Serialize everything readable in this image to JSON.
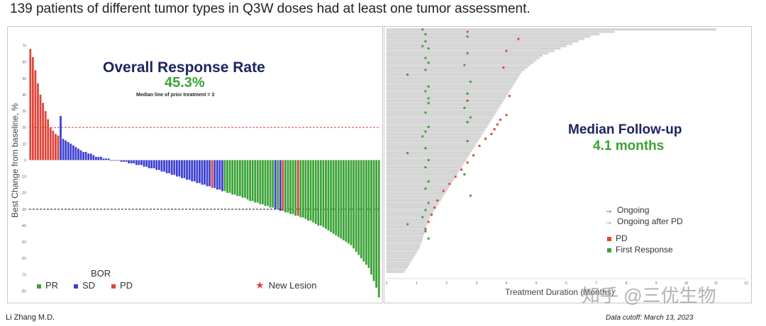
{
  "page": {
    "title": "139 patients of different tumor types in Q3W doses had at least one tumor assessment.",
    "author": "Li Zhang M.D.",
    "cutoff": "Data cutoff: March 13, 2023",
    "watermark": "知乎 @三优生物"
  },
  "colors": {
    "pr": "#3aa335",
    "sd": "#3b3fd1",
    "pd": "#e0443b",
    "title_navy": "#1c2560",
    "accent_green": "#3aa335"
  },
  "waterfall_text": {
    "orr_title": "Overall Response Rate",
    "orr_value": "45.3%",
    "prior_line": "Median line of prior treatment = 3",
    "ylabel": "Best Change from baseline, %",
    "bor_title": "BOR",
    "legend": {
      "pr": "PR",
      "sd": "SD",
      "pd": "PD",
      "new_lesion": "New Lesion"
    },
    "star_icon": "star-icon"
  },
  "swimmer_text": {
    "fu_title": "Median Follow-up",
    "fu_value": "4.1 months",
    "xlabel": "Treatment Duration (Months)",
    "legend": {
      "ongoing": "Ongoing",
      "ongoing_after_pd": "Ongoing after PD",
      "pd": "PD",
      "first_response": "First Response"
    },
    "arrow_icon": "arrow-right-icon"
  },
  "chart_data": [
    {
      "type": "bar",
      "title": "Overall Response Rate",
      "ylabel": "Best Change from baseline, %",
      "xlabel": "",
      "ylim": [
        -85,
        75
      ],
      "yticks": [
        70,
        60,
        50,
        40,
        30,
        20,
        10,
        0,
        -10,
        -20,
        -30,
        -40,
        -50,
        -60,
        -70,
        -80
      ],
      "reference_lines": [
        20,
        -30
      ],
      "grid": false,
      "legend": "bottom-left",
      "series_name": "Best overall response",
      "values": [
        68,
        63,
        55,
        47,
        40,
        35,
        30,
        25,
        20,
        18,
        16,
        15,
        27,
        13,
        12,
        11,
        10,
        9,
        8,
        7,
        6,
        5,
        5,
        4,
        4,
        3,
        2,
        2,
        2,
        1,
        1,
        1,
        0,
        0,
        0,
        0,
        -1,
        -1,
        -1,
        -2,
        -2,
        -2,
        -3,
        -3,
        -3,
        -4,
        -4,
        -5,
        -5,
        -5,
        -6,
        -6,
        -7,
        -7,
        -8,
        -8,
        -9,
        -9,
        -10,
        -10,
        -11,
        -11,
        -12,
        -12,
        -13,
        -13,
        -14,
        -14,
        -15,
        -15,
        -16,
        -16,
        -17,
        -17,
        -18,
        -18,
        -19,
        -19,
        -20,
        -20,
        -21,
        -21,
        -22,
        -22,
        -23,
        -23,
        -24,
        -25,
        -25,
        -26,
        -26,
        -27,
        -27,
        -28,
        -28,
        -29,
        -29,
        -30,
        -30,
        -31,
        -31,
        -32,
        -32,
        -33,
        -33,
        -34,
        -34,
        -35,
        -35,
        -36,
        -37,
        -37,
        -38,
        -39,
        -40,
        -40,
        -41,
        -42,
        -43,
        -44,
        -45,
        -46,
        -47,
        -48,
        -49,
        -50,
        -51,
        -52,
        -54,
        -56,
        -58,
        -60,
        -62,
        -64,
        -66,
        -70,
        -74,
        -78,
        -84
      ],
      "bor": [
        "PD",
        "PD",
        "PD",
        "PD",
        "PD",
        "PD",
        "PD",
        "PD",
        "PD",
        "PD",
        "PD",
        "PD",
        "SD",
        "SD",
        "SD",
        "SD",
        "SD",
        "SD",
        "SD",
        "SD",
        "SD",
        "SD",
        "SD",
        "SD",
        "SD",
        "SD",
        "SD",
        "SD",
        "SD",
        "SD",
        "SD",
        "SD",
        "SD",
        "SD",
        "SD",
        "SD",
        "SD",
        "SD",
        "SD",
        "SD",
        "SD",
        "SD",
        "SD",
        "SD",
        "SD",
        "SD",
        "SD",
        "SD",
        "SD",
        "SD",
        "SD",
        "SD",
        "SD",
        "SD",
        "SD",
        "SD",
        "SD",
        "SD",
        "SD",
        "SD",
        "SD",
        "SD",
        "SD",
        "SD",
        "SD",
        "SD",
        "SD",
        "SD",
        "SD",
        "SD",
        "SD",
        "SD",
        "PD",
        "SD",
        "SD",
        "SD",
        "SD",
        "PR",
        "PR",
        "PR",
        "PR",
        "PR",
        "PR",
        "PR",
        "PR",
        "PR",
        "PR",
        "PR",
        "PR",
        "PR",
        "PR",
        "PR",
        "PR",
        "PR",
        "PR",
        "PR",
        "PR",
        "SD",
        "PR",
        "SD",
        "PD",
        "PR",
        "PR",
        "PR",
        "PR",
        "PR",
        "PD",
        "PR",
        "PR",
        "PR",
        "PR",
        "PR",
        "PR",
        "PR",
        "PR",
        "PR",
        "PR",
        "PR",
        "PR",
        "PR",
        "PR",
        "PR",
        "PR",
        "PR",
        "PR",
        "PR",
        "PR",
        "PR",
        "PR",
        "PR",
        "PR",
        "PR",
        "PR",
        "PR",
        "PR",
        "PR",
        "PR",
        "PR",
        "PR",
        "PR"
      ]
    },
    {
      "type": "bar",
      "orientation": "horizontal",
      "title": "Median Follow-up 4.1 months",
      "xlabel": "Treatment Duration (Months)",
      "xlim": [
        0,
        12
      ],
      "xticks": [
        0,
        1,
        2,
        3,
        4,
        5,
        6,
        7,
        8,
        9,
        10,
        11,
        12
      ],
      "legend": "bottom-right",
      "durations": [
        11.0,
        7.6,
        7.1,
        6.8,
        6.6,
        6.4,
        6.2,
        6.0,
        5.8,
        5.6,
        5.4,
        5.2,
        5.1,
        5.0,
        4.9,
        4.8,
        4.7,
        4.6,
        4.5,
        4.45,
        4.4,
        4.35,
        4.3,
        4.25,
        4.2,
        4.15,
        4.1,
        4.05,
        4.0,
        3.95,
        3.9,
        3.85,
        3.8,
        3.75,
        3.7,
        3.65,
        3.6,
        3.55,
        3.5,
        3.45,
        3.4,
        3.35,
        3.3,
        3.25,
        3.2,
        3.15,
        3.1,
        3.05,
        3.0,
        2.95,
        2.9,
        2.85,
        2.8,
        2.75,
        2.7,
        2.65,
        2.6,
        2.55,
        2.5,
        2.45,
        2.4,
        2.35,
        2.3,
        2.25,
        2.2,
        2.15,
        2.1,
        2.05,
        2.0,
        1.95,
        1.9,
        1.85,
        1.8,
        1.75,
        1.7,
        1.65,
        1.6,
        1.55,
        1.5,
        1.45,
        1.4,
        1.38,
        1.35,
        1.32,
        1.3,
        1.28,
        1.25,
        1.22,
        1.2,
        1.18,
        1.15,
        1.12,
        1.1,
        1.05,
        1.0,
        0.95,
        0.9,
        0.85,
        0.8,
        0.75,
        0.7,
        0.65,
        0.6
      ],
      "first_response": [
        1.2,
        1.3,
        2.7,
        1.3,
        1.2,
        1.4,
        2.7,
        1.3,
        1.4,
        2.6,
        1.3,
        0.7,
        2.8,
        1.4,
        1.3,
        2.7,
        1.4,
        1.4,
        2.6,
        1.3,
        2.8,
        2.7,
        1.4,
        1.3,
        1.2,
        2.7,
        1.3,
        0.7,
        1.4,
        1.3,
        2.6,
        1.4,
        1.3,
        2.8,
        1.4,
        1.3,
        1.2,
        0.7,
        1.3,
        1.4
      ],
      "first_response_rows": [
        0,
        2,
        3,
        5,
        7,
        8,
        10,
        12,
        14,
        15,
        17,
        19,
        22,
        24,
        26,
        27,
        29,
        31,
        33,
        35,
        37,
        39,
        41,
        43,
        45,
        47,
        50,
        52,
        55,
        58,
        61,
        64,
        67,
        70,
        73,
        76,
        79,
        82,
        85,
        88
      ],
      "pd_events": [
        2.7,
        4.4,
        4.0,
        3.9,
        4.1,
        2.7,
        4.0,
        3.8,
        3.7,
        3.6,
        3.5,
        3.3,
        3.1,
        2.9,
        2.7,
        2.5,
        2.3,
        2.1,
        1.9,
        1.7,
        1.6,
        1.5,
        1.4,
        1.3
      ],
      "pd_rows": [
        1,
        4,
        9,
        16,
        28,
        30,
        36,
        38,
        40,
        42,
        44,
        46,
        49,
        53,
        56,
        59,
        62,
        65,
        68,
        72,
        75,
        78,
        81,
        84
      ]
    }
  ]
}
